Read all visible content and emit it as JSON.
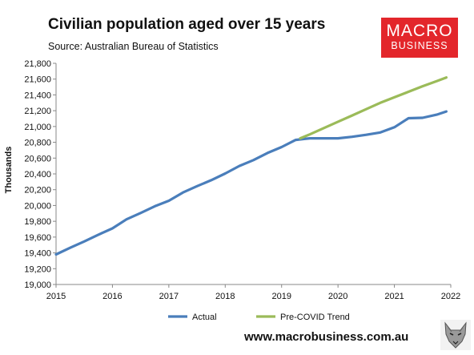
{
  "header": {
    "title": "Civilian population aged over 15 years",
    "subtitle": "Source: Australian Bureau of Statistics"
  },
  "logo": {
    "line1": "MACRO",
    "line2": "BUSINESS",
    "color": "#e3262b"
  },
  "footer": {
    "url": "www.macrobusiness.com.au",
    "mascot_icon": "wolf-icon"
  },
  "chart_data": {
    "type": "line",
    "title": "Civilian population aged over 15 years",
    "subtitle": "Source: Australian Bureau of Statistics",
    "xlabel": "",
    "ylabel": "Thousands",
    "xlim": [
      2015,
      2022
    ],
    "ylim": [
      19000,
      21800
    ],
    "x_ticks": [
      "2015",
      "2016",
      "2017",
      "2018",
      "2019",
      "2020",
      "2021",
      "2022"
    ],
    "y_ticks": [
      "19,000",
      "19,200",
      "19,400",
      "19,600",
      "19,800",
      "20,000",
      "20,200",
      "20,400",
      "20,600",
      "20,800",
      "21,000",
      "21,200",
      "21,400",
      "21,600",
      "21,800"
    ],
    "grid": false,
    "legend": "bottom",
    "series": [
      {
        "name": "Actual",
        "color": "#4a7ebb",
        "x": [
          2015.0,
          2015.25,
          2015.5,
          2015.75,
          2016.0,
          2016.25,
          2016.5,
          2016.75,
          2017.0,
          2017.25,
          2017.5,
          2017.75,
          2018.0,
          2018.25,
          2018.5,
          2018.75,
          2019.0,
          2019.25,
          2019.5,
          2019.75,
          2020.0,
          2020.25,
          2020.5,
          2020.75,
          2021.0,
          2021.25,
          2021.5,
          2021.75,
          2021.92
        ],
        "values": [
          19380,
          19465,
          19545,
          19630,
          19710,
          19825,
          19905,
          19990,
          20060,
          20165,
          20245,
          20320,
          20405,
          20500,
          20575,
          20665,
          20740,
          20830,
          20850,
          20850,
          20850,
          20870,
          20895,
          20925,
          20990,
          21105,
          21110,
          21150,
          21190
        ]
      },
      {
        "name": "Pre-COVID Trend",
        "color": "#9bbb59",
        "x": [
          2019.33,
          2019.5,
          2019.75,
          2020.0,
          2020.25,
          2020.5,
          2020.75,
          2021.0,
          2021.25,
          2021.5,
          2021.75,
          2021.92
        ],
        "values": [
          20850,
          20900,
          20980,
          21060,
          21140,
          21220,
          21300,
          21370,
          21440,
          21510,
          21575,
          21620
        ]
      }
    ]
  }
}
